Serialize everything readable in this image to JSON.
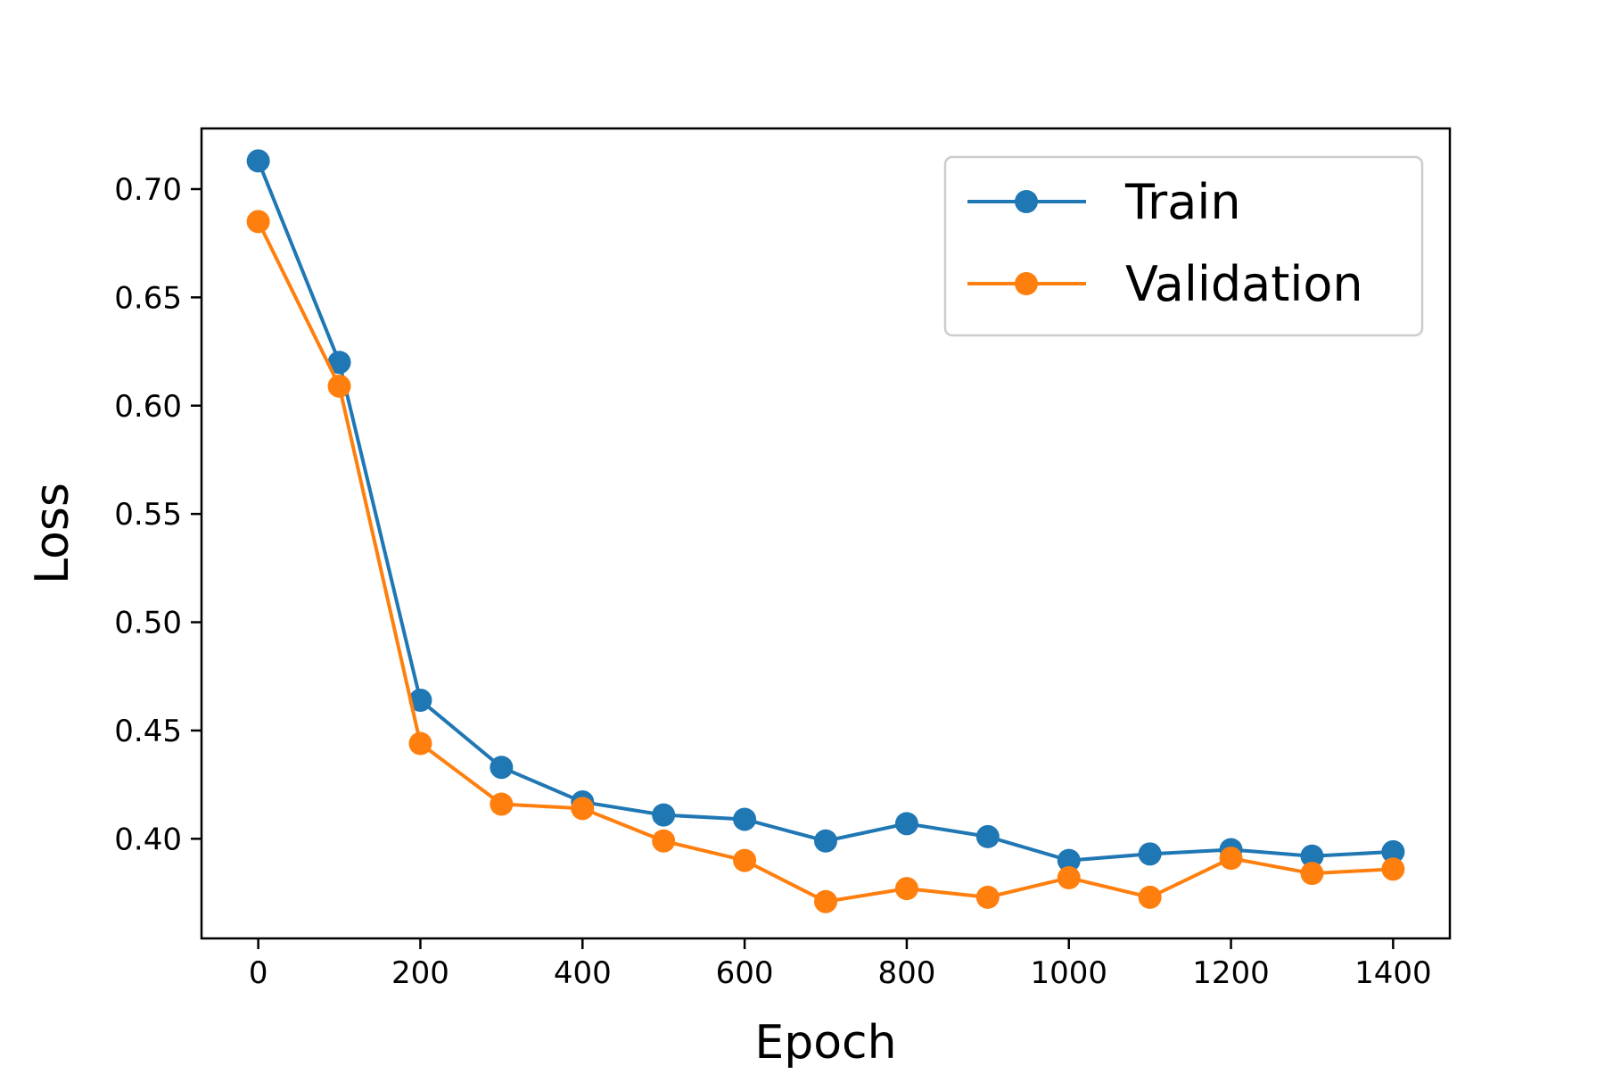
{
  "chart_data": {
    "type": "line",
    "title": "",
    "xlabel": "Epoch",
    "ylabel": "Loss",
    "x": [
      0,
      100,
      200,
      300,
      400,
      500,
      600,
      700,
      800,
      900,
      1000,
      1100,
      1200,
      1300,
      1400
    ],
    "xlim": [
      -70,
      1470
    ],
    "ylim": [
      0.354,
      0.728
    ],
    "xticks": [
      0,
      200,
      400,
      600,
      800,
      1000,
      1200,
      1400
    ],
    "xtick_labels": [
      "0",
      "200",
      "400",
      "600",
      "800",
      "1000",
      "1200",
      "1400"
    ],
    "yticks": [
      0.4,
      0.45,
      0.5,
      0.55,
      0.6,
      0.65,
      0.7
    ],
    "ytick_labels": [
      "0.40",
      "0.45",
      "0.50",
      "0.55",
      "0.60",
      "0.65",
      "0.70"
    ],
    "grid": false,
    "legend_position": "top-right",
    "series": [
      {
        "name": "Train",
        "color": "#1f77b4",
        "marker": "circle",
        "values": [
          0.713,
          0.62,
          0.464,
          0.433,
          0.417,
          0.411,
          0.409,
          0.399,
          0.407,
          0.401,
          0.39,
          0.393,
          0.395,
          0.392,
          0.394
        ]
      },
      {
        "name": "Validation",
        "color": "#ff7f0e",
        "marker": "circle",
        "values": [
          0.685,
          0.609,
          0.444,
          0.416,
          0.414,
          0.399,
          0.39,
          0.371,
          0.377,
          0.373,
          0.382,
          0.373,
          0.391,
          0.384,
          0.386
        ]
      }
    ]
  }
}
